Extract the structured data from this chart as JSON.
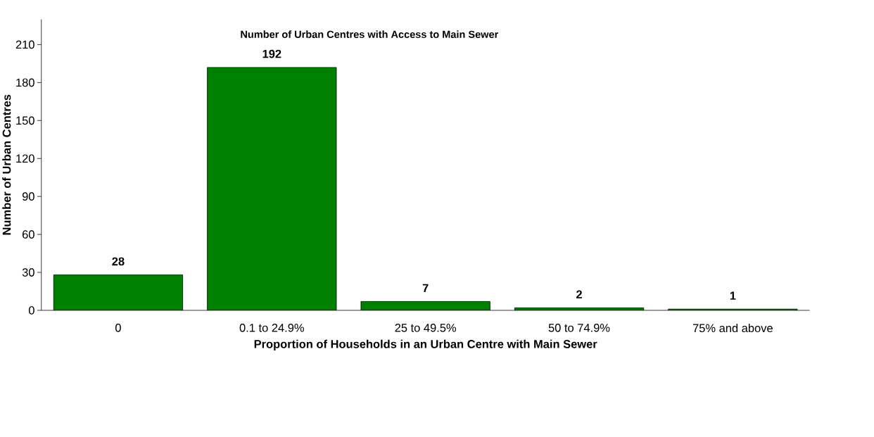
{
  "chart_data": {
    "type": "bar",
    "title": "Number of Urban Centres with Access to Main Sewer",
    "xlabel": "Proportion of Households in an Urban Centre with Main Sewer",
    "ylabel": "Number of Urban Centres",
    "categories": [
      "0",
      "0.1 to 24.9%",
      "25 to 49.5%",
      "50 to 74.9%",
      "75% and above"
    ],
    "values": [
      28,
      192,
      7,
      2,
      1
    ],
    "color": "#008000",
    "ylim": [
      0,
      230
    ],
    "yticks": [
      0,
      30,
      60,
      90,
      120,
      150,
      180,
      210
    ],
    "data_labels": true
  }
}
